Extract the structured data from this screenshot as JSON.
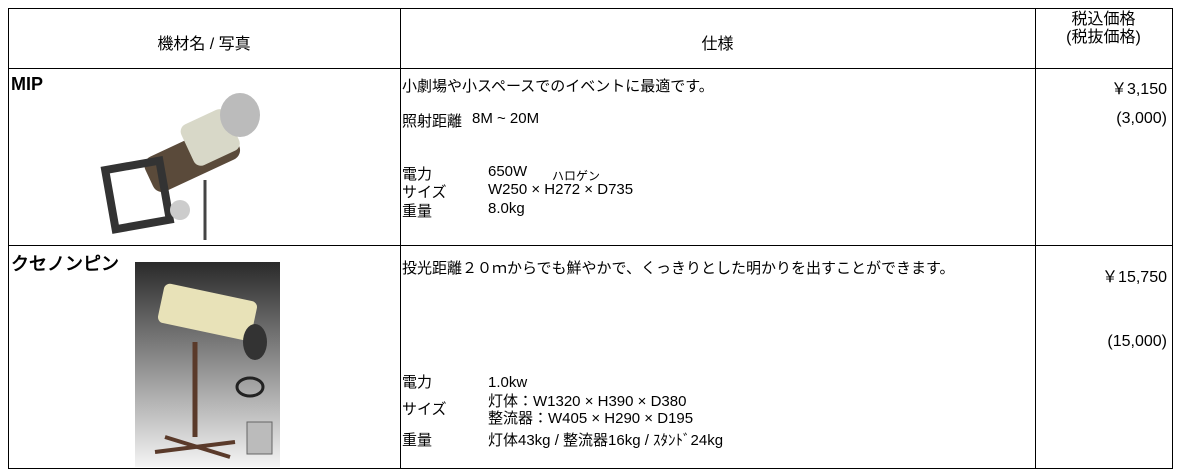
{
  "table": {
    "header": {
      "equipment": "機材名 / 写真",
      "spec": "仕様",
      "price": "税込価格",
      "price_ex": "(税抜価格)"
    },
    "rows": [
      {
        "name": "MIP",
        "description": "小劇場や小スペースでのイベントに最適です。",
        "range_label": "照射距離",
        "range_value": "8M ~ 20M",
        "specs": [
          {
            "label": "電力",
            "values": [
              "650W"
            ],
            "note": "ハロゲン"
          },
          {
            "label": "サイズ",
            "values": [
              "W250 × H272 × D735"
            ]
          },
          {
            "label": "重量",
            "values": [
              "8.0kg"
            ]
          }
        ],
        "price": "￥3,150",
        "price_ex": "(3,000)"
      },
      {
        "name": "クセノンピン",
        "description": "投光距離２０ｍからでも鮮やかで、くっきりとした明かりを出すことができます。",
        "specs": [
          {
            "label": "電力",
            "values": [
              "1.0kw"
            ]
          },
          {
            "label": "サイズ",
            "values": [
              "灯体：W1320 × H390 × D380",
              "整流器：W405 × H290 × D195"
            ]
          },
          {
            "label": "重量",
            "values": [
              "灯体43kg / 整流器16kg / ｽﾀﾝﾄﾞ24kg"
            ]
          }
        ],
        "price": "￥15,750",
        "price_ex": "(15,000)"
      }
    ]
  }
}
